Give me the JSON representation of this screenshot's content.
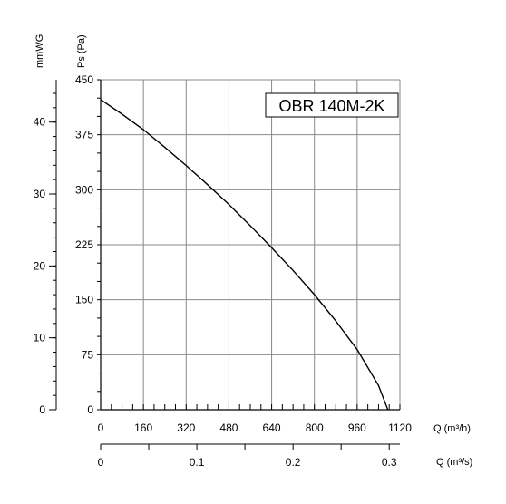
{
  "chart_data": {
    "type": "line",
    "model_label": "OBR 140M-2K",
    "ylabel_left": "mmWG",
    "ylabel_right": "Ps (Pa)",
    "xlabel_top": "Q (m³/h)",
    "xlabel_bottom": "Q (m³/s)",
    "xlim": [
      0,
      1120
    ],
    "ylim": [
      0,
      450
    ],
    "x_ticks": [
      "0",
      "160",
      "320",
      "480",
      "640",
      "800",
      "960",
      "1120"
    ],
    "y_ticks": [
      "0",
      "75",
      "150",
      "225",
      "300",
      "375",
      "450"
    ],
    "mmwg_ticks": [
      "0",
      "10",
      "20",
      "30",
      "40"
    ],
    "m3s_ticks": [
      "0",
      "0.1",
      "0.2",
      "0.3"
    ],
    "grid": true,
    "series": [
      {
        "x": [
          0,
          80,
          160,
          240,
          320,
          400,
          480,
          560,
          640,
          720,
          800,
          880,
          960,
          1040,
          1075
        ],
        "y": [
          423,
          403,
          382,
          358,
          333,
          307,
          280,
          251,
          221,
          190,
          157,
          121,
          82,
          33,
          0
        ]
      }
    ]
  }
}
